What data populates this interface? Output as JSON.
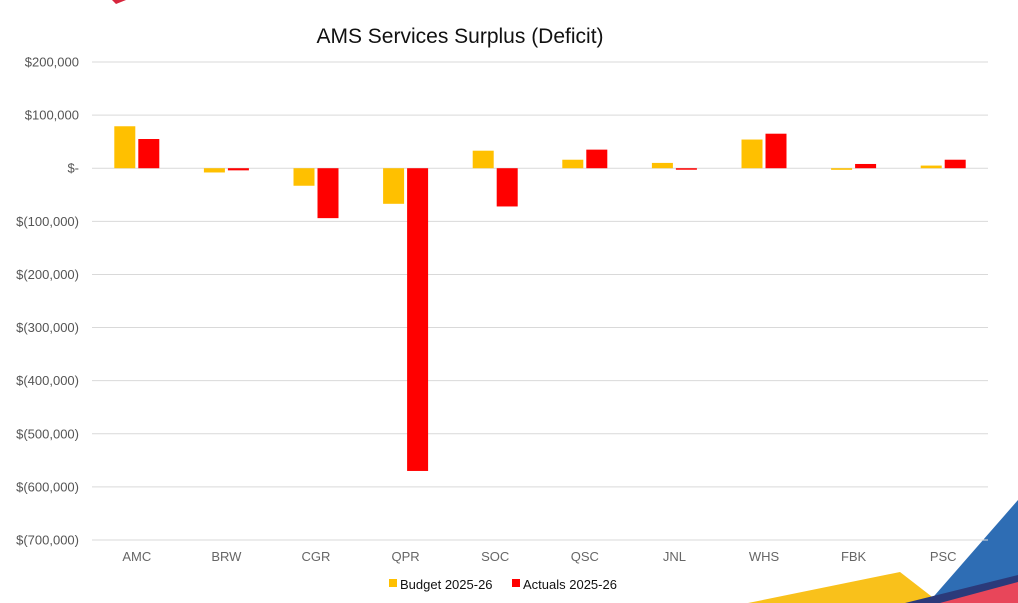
{
  "chart_data": {
    "type": "bar",
    "title": "AMS Services Surplus (Deficit)",
    "xlabel": "",
    "ylabel": "",
    "categories": [
      "AMC",
      "BRW",
      "CGR",
      "QPR",
      "SOC",
      "QSC",
      "JNL",
      "WHS",
      "FBK",
      "PSC"
    ],
    "series": [
      {
        "name": "Budget 2025-26",
        "color": "#FFC000",
        "values": [
          79000,
          -8000,
          -33000,
          -67000,
          33000,
          16000,
          10000,
          54000,
          -3000,
          5000
        ]
      },
      {
        "name": "Actuals 2025-26",
        "color": "#FF0000",
        "values": [
          55000,
          -4000,
          -94000,
          -570000,
          -72000,
          35000,
          -2000,
          65000,
          8000,
          16000
        ]
      }
    ],
    "ylim": [
      -700000,
      200000
    ],
    "yticks": [
      200000,
      100000,
      0,
      -100000,
      -200000,
      -300000,
      -400000,
      -500000,
      -600000,
      -700000
    ],
    "ytick_labels": [
      "$200,000",
      "$100,000",
      "$-",
      "$(100,000)",
      "$(200,000)",
      "$(300,000)",
      "$(400,000)",
      "$(500,000)",
      "$(600,000)",
      "$(700,000)"
    ],
    "grid": true,
    "legend_position": "bottom-center"
  },
  "decor": {
    "yellow": "#F9C11B",
    "blue": "#2E6DB4",
    "navy": "#2B3A7A",
    "pink": "#E8465A",
    "red": "#D7263D"
  }
}
